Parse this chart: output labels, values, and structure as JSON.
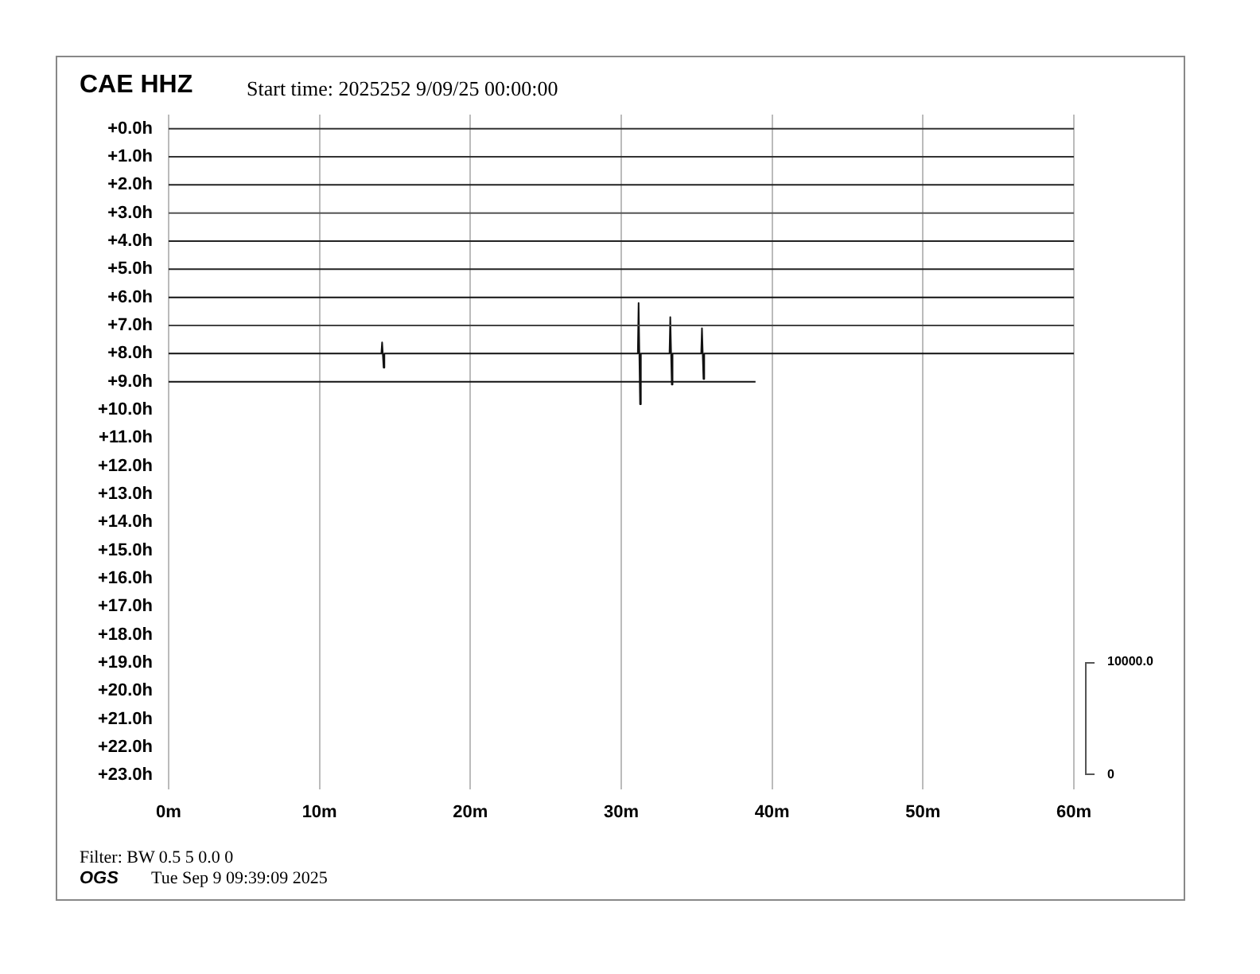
{
  "chart_data": {
    "type": "line",
    "title": "CAE HHZ",
    "subtitle": "Start time: 2025252  9/09/25 00:00:00",
    "annotations": [
      "Filter: BW 0.5 5 0.0 0",
      "OGS",
      "Tue Sep  9 09:39:09 2025",
      "10000.0",
      "0"
    ],
    "xlim": [
      0,
      60
    ],
    "xticks": [
      {
        "value": 0,
        "label": "0m"
      },
      {
        "value": 10,
        "label": "10m"
      },
      {
        "value": 20,
        "label": "20m"
      },
      {
        "value": 30,
        "label": "30m"
      },
      {
        "value": 40,
        "label": "40m"
      },
      {
        "value": 50,
        "label": "50m"
      },
      {
        "value": 60,
        "label": "60m"
      }
    ],
    "ylim": [
      23.5,
      -0.5
    ],
    "yticks": [
      {
        "value": 0,
        "label": "+0.0h"
      },
      {
        "value": 1,
        "label": "+1.0h"
      },
      {
        "value": 2,
        "label": "+2.0h"
      },
      {
        "value": 3,
        "label": "+3.0h"
      },
      {
        "value": 4,
        "label": "+4.0h"
      },
      {
        "value": 5,
        "label": "+5.0h"
      },
      {
        "value": 6,
        "label": "+6.0h"
      },
      {
        "value": 7,
        "label": "+7.0h"
      },
      {
        "value": 8,
        "label": "+8.0h"
      },
      {
        "value": 9,
        "label": "+9.0h"
      },
      {
        "value": 10,
        "label": "+10.0h"
      },
      {
        "value": 11,
        "label": "+11.0h"
      },
      {
        "value": 12,
        "label": "+12.0h"
      },
      {
        "value": 13,
        "label": "+13.0h"
      },
      {
        "value": 14,
        "label": "+14.0h"
      },
      {
        "value": 15,
        "label": "+15.0h"
      },
      {
        "value": 16,
        "label": "+16.0h"
      },
      {
        "value": 17,
        "label": "+17.0h"
      },
      {
        "value": 18,
        "label": "+18.0h"
      },
      {
        "value": 19,
        "label": "+19.0h"
      },
      {
        "value": 20,
        "label": "+20.0h"
      },
      {
        "value": 21,
        "label": "+21.0h"
      },
      {
        "value": 22,
        "label": "+22.0h"
      },
      {
        "value": 23,
        "label": "+23.0h"
      }
    ],
    "grid": "x",
    "legend": false,
    "marker": "none",
    "line_style": "solid",
    "series": [
      {
        "color": "#333333",
        "x": [
          0,
          60
        ],
        "values": [
          0,
          0
        ]
      },
      {
        "color": "#333333",
        "x": [
          0,
          60
        ],
        "values": [
          1,
          1
        ]
      },
      {
        "color": "#222222",
        "x": [
          0,
          60
        ],
        "values": [
          2,
          2
        ]
      },
      {
        "color": "#555555",
        "x": [
          0,
          60
        ],
        "values": [
          3,
          3
        ]
      },
      {
        "color": "#222222",
        "x": [
          0,
          60
        ],
        "values": [
          4,
          4
        ]
      },
      {
        "color": "#222222",
        "x": [
          0,
          60
        ],
        "values": [
          5,
          5
        ]
      },
      {
        "color": "#111111",
        "x": [
          0,
          60
        ],
        "values": [
          6,
          6
        ]
      },
      {
        "color": "#444444",
        "x": [
          0,
          60
        ],
        "values": [
          7,
          7
        ]
      },
      {
        "color": "#111111",
        "x": [
          0,
          14.1,
          14.15,
          14.25,
          14.3,
          31.1,
          31.15,
          31.25,
          31.3,
          33.2,
          33.25,
          33.35,
          33.4,
          35.3,
          35.35,
          35.45,
          35.5,
          60
        ],
        "values": [
          8,
          8,
          7.6,
          8.5,
          8,
          8,
          6.2,
          9.8,
          8,
          8,
          6.7,
          9.1,
          8,
          8,
          7.1,
          8.9,
          8,
          8
        ]
      },
      {
        "color": "#111111",
        "x": [
          0,
          38.9
        ],
        "values": [
          9,
          9
        ]
      }
    ]
  }
}
